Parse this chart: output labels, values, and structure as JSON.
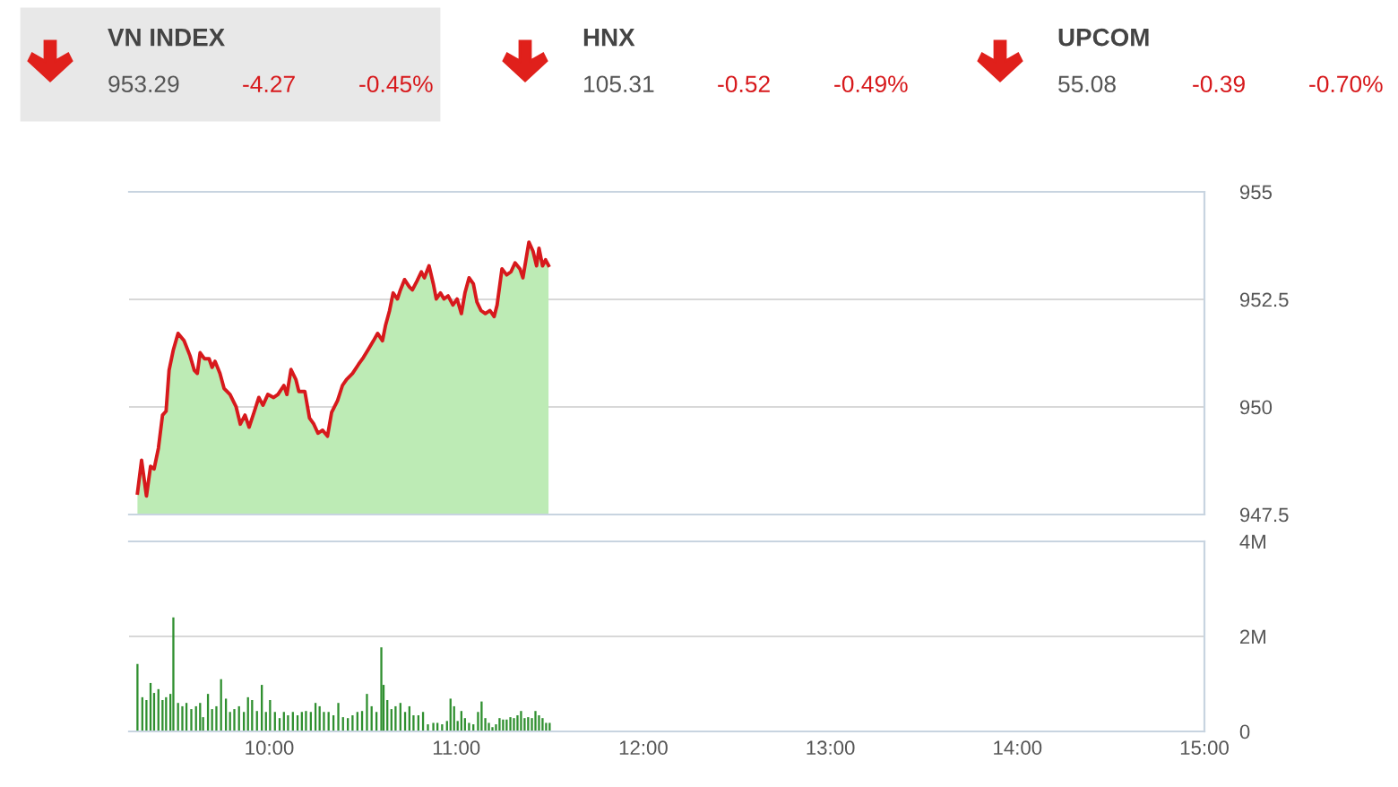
{
  "chart_data": [
    {
      "type": "area",
      "annotations": [
        "VN INDEX",
        "953.29",
        "-4.27",
        "-0.45%",
        "HNX",
        "105.31",
        "-0.52",
        "-0.49%",
        "UPCOM",
        "55.08",
        "-0.39",
        "-0.70%"
      ],
      "xlim": [
        9.25,
        15
      ],
      "ylim": [
        947.5,
        955
      ],
      "yticks": [
        947.5,
        950,
        952.5,
        955
      ],
      "grid": "y",
      "tick_labels": "y",
      "series": [
        {
          "type": "line",
          "color": "#d7191c",
          "x": [
            9.295,
            9.317,
            9.343,
            9.365,
            9.384,
            9.407,
            9.429,
            9.448,
            9.464,
            9.487,
            9.512,
            9.544,
            9.576,
            9.599,
            9.615,
            9.63,
            9.653,
            9.678,
            9.694,
            9.71,
            9.736,
            9.758,
            9.79,
            9.822,
            9.845,
            9.87,
            9.892,
            9.918,
            9.944,
            9.966,
            9.992,
            10.023,
            10.046,
            10.078,
            10.094,
            10.116,
            10.142,
            10.158,
            10.19,
            10.215,
            10.238,
            10.26,
            10.285,
            10.311,
            10.333,
            10.365,
            10.391,
            10.413,
            10.445,
            10.477,
            10.503,
            10.528,
            10.557,
            10.579,
            10.605,
            10.621,
            10.643,
            10.662,
            10.685,
            10.701,
            10.723,
            10.749,
            10.765,
            10.79,
            10.813,
            10.829,
            10.854,
            10.877,
            10.893,
            10.915,
            10.934,
            10.956,
            10.982,
            11.004,
            11.027,
            11.046,
            11.068,
            11.091,
            11.11,
            11.132,
            11.155,
            11.18,
            11.202,
            11.218,
            11.244,
            11.269,
            11.292,
            11.314,
            11.34,
            11.356,
            11.388,
            11.41,
            11.429,
            11.442,
            11.461,
            11.477,
            11.493
          ],
          "values": [
            948.0,
            948.76,
            947.93,
            948.62,
            948.56,
            949.04,
            949.81,
            949.9,
            950.85,
            951.33,
            951.71,
            951.54,
            951.19,
            950.85,
            950.78,
            951.26,
            951.12,
            951.12,
            950.92,
            951.06,
            950.78,
            950.43,
            950.29,
            950.01,
            949.6,
            949.81,
            949.53,
            949.87,
            950.22,
            950.04,
            950.29,
            950.22,
            950.29,
            950.5,
            950.29,
            950.87,
            950.64,
            950.36,
            950.36,
            949.74,
            949.6,
            949.39,
            949.46,
            949.32,
            949.87,
            950.15,
            950.5,
            950.64,
            950.78,
            950.99,
            951.15,
            951.33,
            951.54,
            951.71,
            951.54,
            951.89,
            952.24,
            952.65,
            952.51,
            952.72,
            952.96,
            952.79,
            952.72,
            952.93,
            953.14,
            953.0,
            953.28,
            952.86,
            952.51,
            952.65,
            952.51,
            952.58,
            952.37,
            952.51,
            952.17,
            952.65,
            953.0,
            952.86,
            952.44,
            952.24,
            952.17,
            952.24,
            952.1,
            952.37,
            953.21,
            953.07,
            953.14,
            953.35,
            953.21,
            953.0,
            953.83,
            953.62,
            953.28,
            953.69,
            953.28,
            953.42,
            953.29
          ]
        },
        {
          "type": "area",
          "color": "#bdebb5",
          "x": [
            9.295,
            9.317,
            9.343,
            9.365,
            9.384,
            9.407,
            9.429,
            9.448,
            9.464,
            9.487,
            9.512,
            9.544,
            9.576,
            9.599,
            9.615,
            9.63,
            9.653,
            9.678,
            9.694,
            9.71,
            9.736,
            9.758,
            9.79,
            9.822,
            9.845,
            9.87,
            9.892,
            9.918,
            9.944,
            9.966,
            9.992,
            10.023,
            10.046,
            10.078,
            10.094,
            10.116,
            10.142,
            10.158,
            10.19,
            10.215,
            10.238,
            10.26,
            10.285,
            10.311,
            10.333,
            10.365,
            10.391,
            10.413,
            10.445,
            10.477,
            10.503,
            10.528,
            10.557,
            10.579,
            10.605,
            10.621,
            10.643,
            10.662,
            10.685,
            10.701,
            10.723,
            10.749,
            10.765,
            10.79,
            10.813,
            10.829,
            10.854,
            10.877,
            10.893,
            10.915,
            10.934,
            10.956,
            10.982,
            11.004,
            11.027,
            11.046,
            11.068,
            11.091,
            11.11,
            11.132,
            11.155,
            11.18,
            11.202,
            11.218,
            11.244,
            11.269,
            11.292,
            11.314,
            11.34,
            11.356,
            11.388,
            11.41,
            11.429,
            11.442,
            11.461,
            11.477,
            11.493
          ],
          "values": [
            948.0,
            948.76,
            947.93,
            948.62,
            948.56,
            949.04,
            949.81,
            949.9,
            950.85,
            951.33,
            951.71,
            951.54,
            951.19,
            950.85,
            950.78,
            951.26,
            951.12,
            951.12,
            950.92,
            951.06,
            950.78,
            950.43,
            950.29,
            950.01,
            949.6,
            949.81,
            949.53,
            949.87,
            950.22,
            950.04,
            950.29,
            950.22,
            950.29,
            950.5,
            950.29,
            950.87,
            950.64,
            950.36,
            950.36,
            949.74,
            949.6,
            949.39,
            949.46,
            949.32,
            949.87,
            950.15,
            950.5,
            950.64,
            950.78,
            950.99,
            951.15,
            951.33,
            951.54,
            951.71,
            951.54,
            951.89,
            952.24,
            952.65,
            952.51,
            952.72,
            952.96,
            952.79,
            952.72,
            952.93,
            953.14,
            953.0,
            953.28,
            952.86,
            952.51,
            952.65,
            952.51,
            952.58,
            952.37,
            952.51,
            952.17,
            952.65,
            953.0,
            952.86,
            952.44,
            952.24,
            952.17,
            952.24,
            952.1,
            952.37,
            953.21,
            953.07,
            953.14,
            953.35,
            953.21,
            953.0,
            953.83,
            953.62,
            953.28,
            953.69,
            953.28,
            953.42,
            953.29
          ]
        }
      ]
    },
    {
      "type": "bar",
      "xlim": [
        9.25,
        15
      ],
      "ylim": [
        0,
        4
      ],
      "yticks": [
        0,
        {
          "value": 2,
          "label": "2M"
        },
        {
          "value": 4,
          "label": "4M"
        }
      ],
      "xticks": [
        {
          "value": 10,
          "label": "10:00"
        },
        {
          "value": 11,
          "label": "11:00"
        },
        {
          "value": 12,
          "label": "12:00"
        },
        {
          "value": 13,
          "label": "13:00"
        },
        {
          "value": 14,
          "label": "14:00"
        },
        {
          "value": 15,
          "label": "15:00"
        }
      ],
      "grid": "y",
      "series": [
        {
          "color": "#2f8f2f",
          "x": [
            9.295,
            9.321,
            9.343,
            9.365,
            9.384,
            9.407,
            9.429,
            9.448,
            9.471,
            9.487,
            9.512,
            9.535,
            9.557,
            9.583,
            9.608,
            9.63,
            9.646,
            9.672,
            9.694,
            9.717,
            9.742,
            9.768,
            9.79,
            9.813,
            9.838,
            9.864,
            9.886,
            9.908,
            9.934,
            9.96,
            9.982,
            10.004,
            10.03,
            10.055,
            10.078,
            10.1,
            10.126,
            10.151,
            10.174,
            10.196,
            10.222,
            10.247,
            10.269,
            10.292,
            10.317,
            10.343,
            10.369,
            10.394,
            10.42,
            10.445,
            10.471,
            10.496,
            10.522,
            10.547,
            10.573,
            10.599,
            10.611,
            10.631,
            10.653,
            10.675,
            10.701,
            10.726,
            10.749,
            10.771,
            10.797,
            10.822,
            10.848,
            10.877,
            10.899,
            10.924,
            10.95,
            10.969,
            10.988,
            11.007,
            11.027,
            11.046,
            11.068,
            11.091,
            11.116,
            11.135,
            11.155,
            11.174,
            11.193,
            11.212,
            11.231,
            11.25,
            11.269,
            11.289,
            11.308,
            11.327,
            11.346,
            11.365,
            11.384,
            11.404,
            11.423,
            11.442,
            11.461,
            11.48,
            11.499
          ],
          "values": [
            1.42,
            0.72,
            0.66,
            1.02,
            0.81,
            0.89,
            0.66,
            0.72,
            0.79,
            2.4,
            0.6,
            0.53,
            0.6,
            0.47,
            0.53,
            0.6,
            0.3,
            0.79,
            0.47,
            0.53,
            1.1,
            0.69,
            0.41,
            0.47,
            0.53,
            0.41,
            0.72,
            0.66,
            0.43,
            0.98,
            0.41,
            0.66,
            0.41,
            0.28,
            0.41,
            0.34,
            0.41,
            0.34,
            0.41,
            0.43,
            0.41,
            0.6,
            0.53,
            0.41,
            0.41,
            0.34,
            0.6,
            0.3,
            0.28,
            0.34,
            0.41,
            0.43,
            0.79,
            0.53,
            0.41,
            1.77,
            0.98,
            0.66,
            0.47,
            0.53,
            0.6,
            0.41,
            0.53,
            0.34,
            0.34,
            0.41,
            0.15,
            0.18,
            0.18,
            0.15,
            0.22,
            0.69,
            0.53,
            0.22,
            0.43,
            0.28,
            0.18,
            0.15,
            0.41,
            0.63,
            0.28,
            0.18,
            0.09,
            0.15,
            0.28,
            0.25,
            0.25,
            0.3,
            0.28,
            0.34,
            0.43,
            0.28,
            0.3,
            0.28,
            0.43,
            0.34,
            0.28,
            0.18,
            0.18
          ]
        }
      ]
    }
  ]
}
